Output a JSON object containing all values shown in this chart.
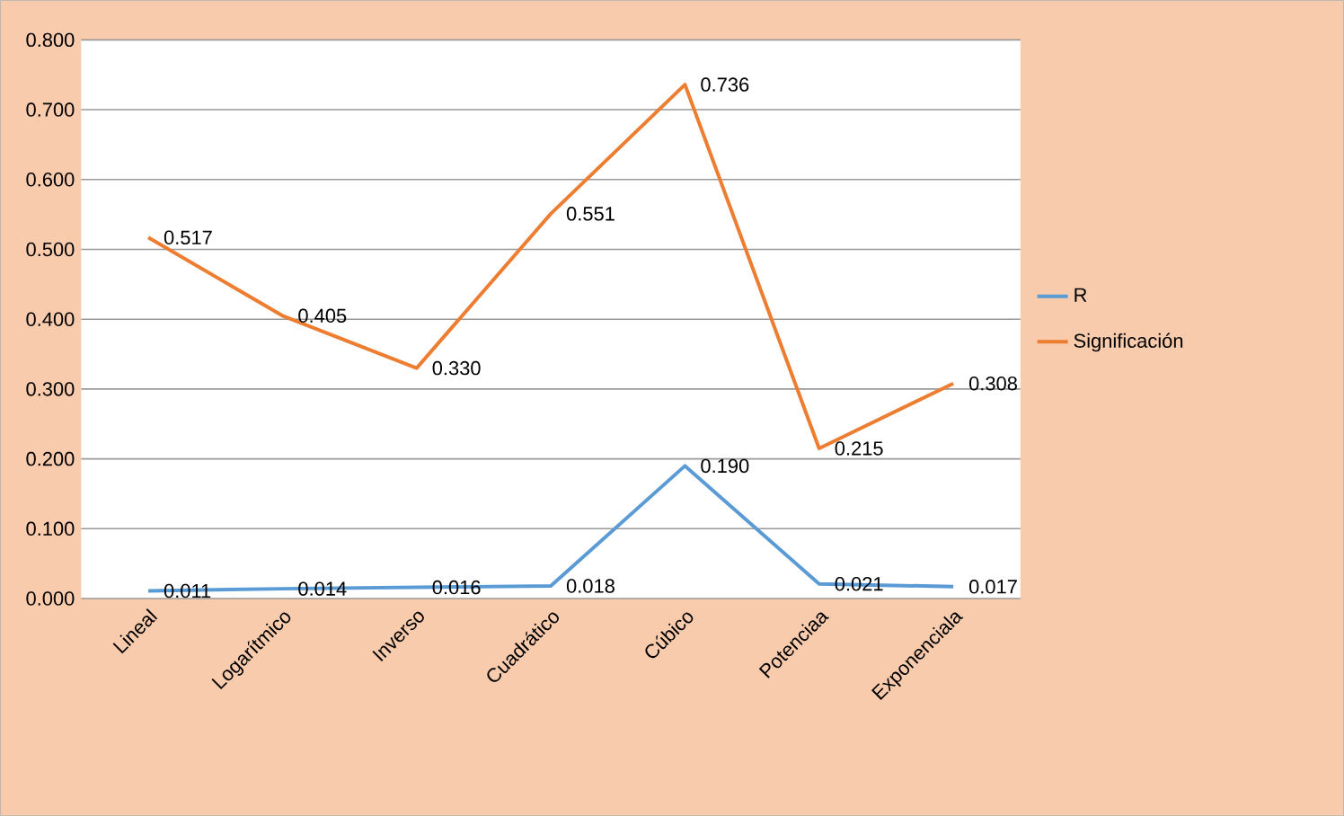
{
  "chart_data": {
    "type": "line",
    "categories": [
      "Lineal",
      "Logarítmico",
      "Inverso",
      "Cuadrático",
      "Cúbico",
      "Potenciaa",
      "Exponenciala"
    ],
    "series": [
      {
        "name": "R",
        "color": "#5b9bd5",
        "values": [
          0.011,
          0.014,
          0.016,
          0.018,
          0.19,
          0.021,
          0.017
        ],
        "value_labels": [
          "0.011",
          "0.014",
          "0.016",
          "0.018",
          "0.190",
          "0.021",
          "0.017"
        ]
      },
      {
        "name": "Significación",
        "color": "#ed7d31",
        "values": [
          0.517,
          0.405,
          0.33,
          0.551,
          0.736,
          0.215,
          0.308
        ],
        "value_labels": [
          "0.517",
          "0.405",
          "0.330",
          "0.551",
          "0.736",
          "0.215",
          "0.308"
        ]
      }
    ],
    "ylim": [
      0,
      0.8
    ],
    "yticks": [
      {
        "value": 0,
        "label": "0.000"
      },
      {
        "value": 0.1,
        "label": "0.100"
      },
      {
        "value": 0.2,
        "label": "0.200"
      },
      {
        "value": 0.3,
        "label": "0.300"
      },
      {
        "value": 0.4,
        "label": "0.400"
      },
      {
        "value": 0.5,
        "label": "0.500"
      },
      {
        "value": 0.6,
        "label": "0.600"
      },
      {
        "value": 0.7,
        "label": "0.700"
      },
      {
        "value": 0.8,
        "label": "0.800"
      }
    ],
    "grid": "y",
    "legend": "right",
    "marker": "none",
    "line_style": "solid"
  }
}
